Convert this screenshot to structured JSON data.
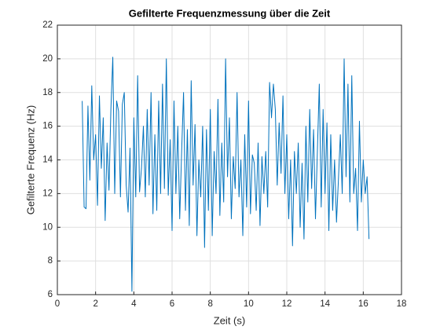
{
  "chart_data": {
    "type": "line",
    "title": "Gefilterte Frequenzmessung über die Zeit",
    "xlabel": "Zeit (s)",
    "ylabel": "Gefilterte Frequenz (Hz)",
    "xlim": [
      0,
      18
    ],
    "xticks": [
      0,
      2,
      4,
      6,
      8,
      10,
      12,
      14,
      16,
      18
    ],
    "ylim": [
      6,
      22
    ],
    "yticks": [
      6,
      8,
      10,
      12,
      14,
      16,
      18,
      20,
      22
    ],
    "grid": true,
    "x": [
      1.3,
      1.4,
      1.5,
      1.6,
      1.7,
      1.8,
      1.9,
      2.0,
      2.1,
      2.2,
      2.3,
      2.4,
      2.5,
      2.6,
      2.7,
      2.8,
      2.9,
      3.0,
      3.1,
      3.2,
      3.3,
      3.4,
      3.5,
      3.6,
      3.7,
      3.8,
      3.9,
      4.0,
      4.1,
      4.2,
      4.3,
      4.4,
      4.5,
      4.6,
      4.7,
      4.8,
      4.9,
      5.0,
      5.1,
      5.2,
      5.3,
      5.4,
      5.5,
      5.6,
      5.7,
      5.8,
      5.9,
      6.0,
      6.1,
      6.2,
      6.3,
      6.4,
      6.5,
      6.6,
      6.7,
      6.8,
      6.9,
      7.0,
      7.1,
      7.2,
      7.3,
      7.4,
      7.5,
      7.6,
      7.7,
      7.8,
      7.9,
      8.0,
      8.1,
      8.2,
      8.3,
      8.4,
      8.5,
      8.6,
      8.7,
      8.8,
      8.9,
      9.0,
      9.1,
      9.2,
      9.3,
      9.4,
      9.5,
      9.6,
      9.7,
      9.8,
      9.9,
      10.0,
      10.1,
      10.2,
      10.3,
      10.4,
      10.5,
      10.6,
      10.7,
      10.8,
      10.9,
      11.0,
      11.1,
      11.2,
      11.3,
      11.4,
      11.5,
      11.6,
      11.7,
      11.8,
      11.9,
      12.0,
      12.1,
      12.2,
      12.3,
      12.4,
      12.5,
      12.6,
      12.7,
      12.8,
      12.9,
      13.0,
      13.1,
      13.2,
      13.3,
      13.4,
      13.5,
      13.6,
      13.7,
      13.8,
      13.9,
      14.0,
      14.1,
      14.2,
      14.3,
      14.4,
      14.5,
      14.6,
      14.7,
      14.8,
      14.9,
      15.0,
      15.1,
      15.2,
      15.3,
      15.4,
      15.5,
      15.6,
      15.7,
      15.8,
      15.9,
      16.0,
      16.1,
      16.2,
      16.3
    ],
    "series": [
      {
        "color": "#0072BD",
        "values": [
          17.5,
          11.2,
          11.1,
          17.2,
          12.8,
          18.4,
          14.0,
          15.5,
          11.3,
          17.8,
          13.5,
          16.5,
          10.4,
          15.0,
          12.2,
          17.0,
          20.1,
          12.0,
          17.5,
          16.9,
          11.8,
          17.3,
          18.0,
          12.5,
          10.9,
          14.7,
          6.2,
          16.5,
          11.8,
          19.0,
          12.1,
          13.5,
          16.0,
          11.8,
          17.0,
          12.5,
          18.0,
          10.8,
          15.5,
          11.0,
          17.5,
          12.0,
          18.5,
          12.3,
          20.0,
          11.9,
          15.2,
          9.8,
          17.5,
          12.0,
          16.0,
          10.5,
          14.5,
          18.0,
          11.0,
          15.8,
          10.1,
          18.7,
          12.5,
          16.1,
          9.5,
          14.0,
          11.8,
          16.0,
          8.8,
          15.8,
          11.0,
          17.0,
          9.5,
          14.5,
          12.0,
          17.6,
          10.7,
          15.0,
          11.5,
          20.0,
          13.0,
          16.5,
          10.5,
          14.2,
          12.3,
          18.0,
          11.8,
          14.0,
          9.5,
          15.5,
          11.2,
          17.5,
          10.8,
          14.3,
          13.8,
          11.0,
          15.0,
          10.1,
          14.2,
          12.0,
          14.5,
          11.2,
          18.6,
          16.5,
          18.5,
          17.0,
          12.5,
          16.2,
          13.2,
          17.8,
          12.0,
          15.5,
          10.5,
          14.0,
          8.9,
          14.5,
          12.0,
          15.0,
          10.0,
          13.8,
          9.3,
          16.0,
          11.5,
          17.0,
          12.3,
          15.8,
          10.5,
          14.5,
          18.5,
          11.2,
          17.0,
          12.0,
          16.2,
          9.8,
          15.5,
          11.0,
          14.0,
          10.3,
          12.8,
          15.5,
          12.0,
          20.0,
          13.0,
          18.5,
          11.5,
          19.0,
          12.0,
          13.5,
          9.8,
          16.3,
          11.5,
          14.0,
          12.0,
          13.0,
          9.3
        ]
      }
    ]
  }
}
